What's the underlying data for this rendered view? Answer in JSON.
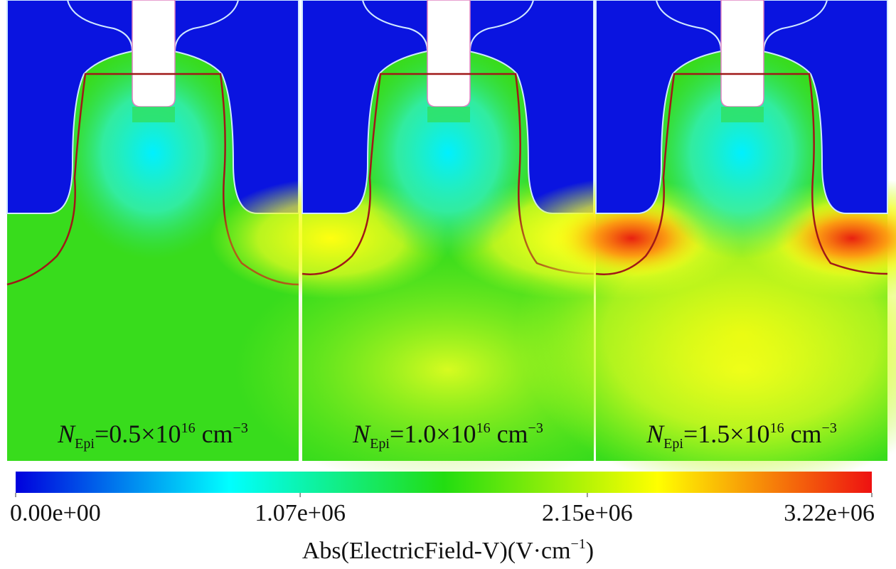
{
  "panels": [
    {
      "symbol": "N",
      "subscript": "Epi",
      "value": "=0.5×10",
      "exponent": "16",
      "unit": " cm",
      "unit_exponent": "−3",
      "field_level": 0
    },
    {
      "symbol": "N",
      "subscript": "Epi",
      "value": "=1.0×10",
      "exponent": "16",
      "unit": " cm",
      "unit_exponent": "−3",
      "field_level": 1
    },
    {
      "symbol": "N",
      "subscript": "Epi",
      "value": "=1.5×10",
      "exponent": "16",
      "unit": " cm",
      "unit_exponent": "−3",
      "field_level": 2
    }
  ],
  "colorbar": {
    "lim": [
      0,
      3220000
    ],
    "ticks": [
      {
        "value": 0,
        "label": "0.00e+00"
      },
      {
        "value": 1070000,
        "label": "1.07e+06"
      },
      {
        "value": 2150000,
        "label": "2.15e+06"
      },
      {
        "value": 3220000,
        "label": "3.22e+06"
      }
    ],
    "colors": [
      "#0000dd",
      "#00ffff",
      "#22dd11",
      "#ffff00",
      "#ee1111"
    ],
    "title": "Abs(ElectricField-V)(V·cm",
    "title_exponent": "−1",
    "title_close": ")"
  }
}
